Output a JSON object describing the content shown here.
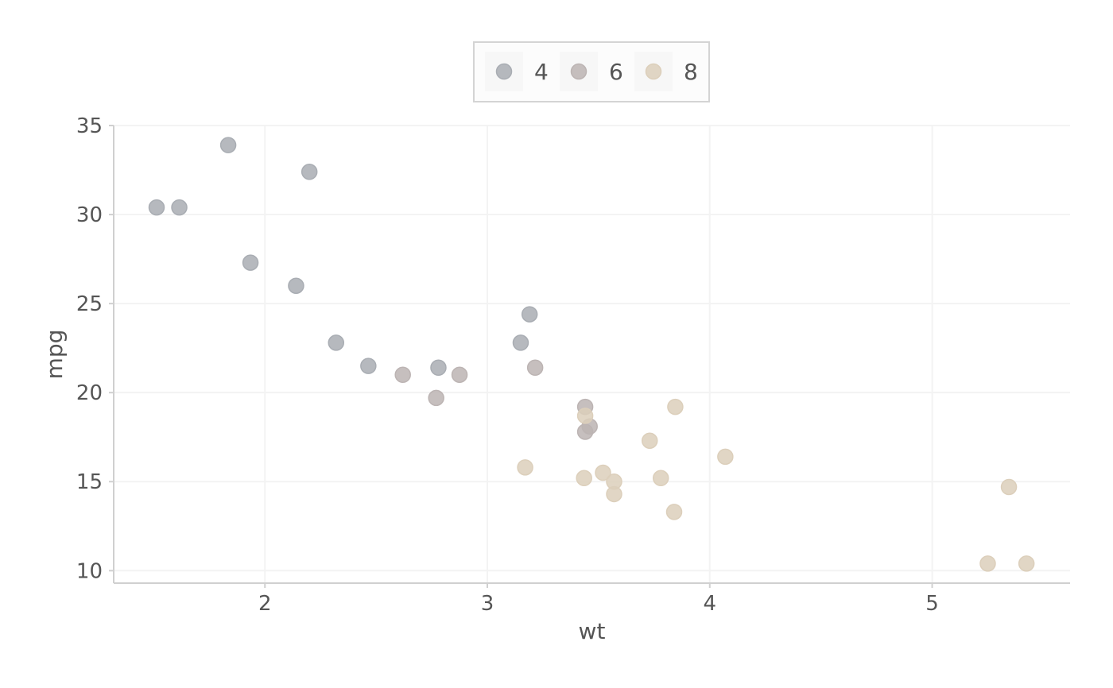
{
  "chart_data": {
    "type": "scatter",
    "title": "",
    "xlabel": "wt",
    "ylabel": "mpg",
    "xlim": [
      1.32,
      5.62
    ],
    "ylim": [
      9.3,
      35.0
    ],
    "x_ticks": [
      2,
      3,
      4,
      5
    ],
    "y_ticks": [
      10,
      15,
      20,
      25,
      30,
      35
    ],
    "grid": "horizontal",
    "legend_position": "top-center",
    "series": [
      {
        "name": "4",
        "color": "#a9adb3",
        "points": [
          {
            "x": 1.513,
            "y": 30.4
          },
          {
            "x": 1.615,
            "y": 30.4
          },
          {
            "x": 1.835,
            "y": 33.9
          },
          {
            "x": 1.935,
            "y": 27.3
          },
          {
            "x": 2.14,
            "y": 26.0
          },
          {
            "x": 2.2,
            "y": 32.4
          },
          {
            "x": 2.32,
            "y": 22.8
          },
          {
            "x": 2.465,
            "y": 21.5
          },
          {
            "x": 2.78,
            "y": 21.4
          },
          {
            "x": 3.15,
            "y": 22.8
          },
          {
            "x": 3.19,
            "y": 24.4
          }
        ]
      },
      {
        "name": "6",
        "color": "#bcb4b3",
        "points": [
          {
            "x": 2.62,
            "y": 21.0
          },
          {
            "x": 2.77,
            "y": 19.7
          },
          {
            "x": 2.875,
            "y": 21.0
          },
          {
            "x": 3.215,
            "y": 21.4
          },
          {
            "x": 3.44,
            "y": 19.2
          },
          {
            "x": 3.44,
            "y": 17.8
          },
          {
            "x": 3.46,
            "y": 18.1
          }
        ]
      },
      {
        "name": "8",
        "color": "#dccfbb",
        "points": [
          {
            "x": 3.17,
            "y": 15.8
          },
          {
            "x": 3.435,
            "y": 15.2
          },
          {
            "x": 3.44,
            "y": 18.7
          },
          {
            "x": 3.52,
            "y": 15.5
          },
          {
            "x": 3.57,
            "y": 15.0
          },
          {
            "x": 3.57,
            "y": 14.3
          },
          {
            "x": 3.73,
            "y": 17.3
          },
          {
            "x": 3.78,
            "y": 15.2
          },
          {
            "x": 3.84,
            "y": 13.3
          },
          {
            "x": 3.845,
            "y": 19.2
          },
          {
            "x": 4.07,
            "y": 16.4
          },
          {
            "x": 5.25,
            "y": 10.4
          },
          {
            "x": 5.345,
            "y": 14.7
          },
          {
            "x": 5.424,
            "y": 10.4
          }
        ]
      }
    ]
  }
}
